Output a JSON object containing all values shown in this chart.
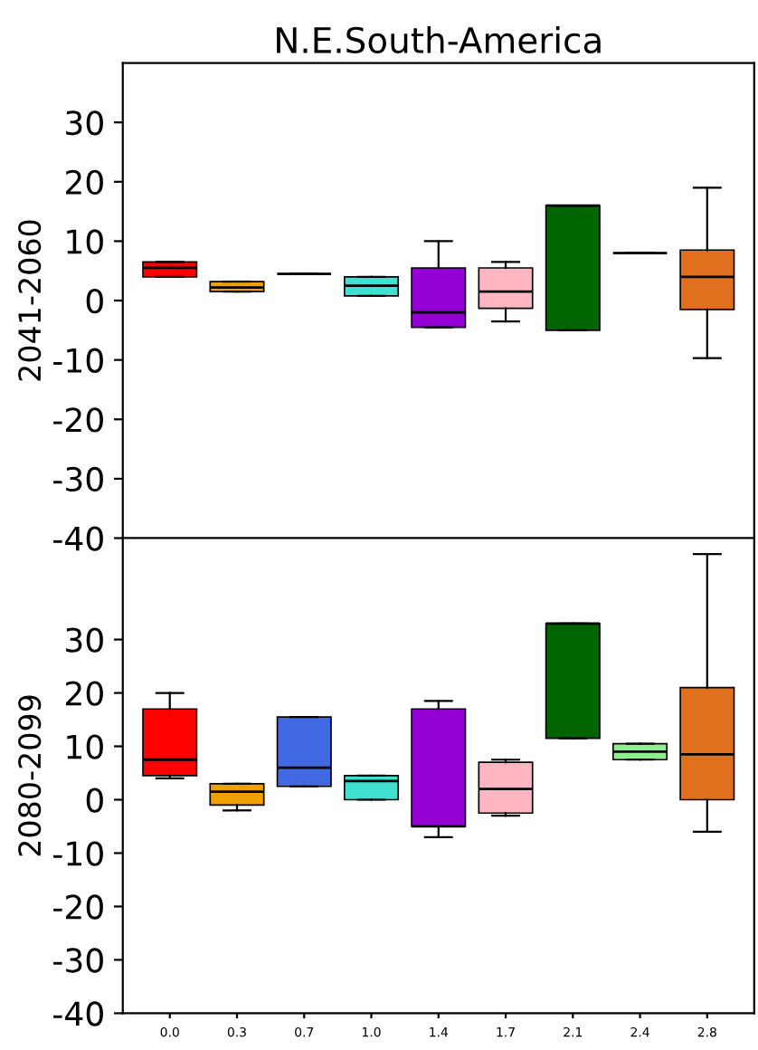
{
  "chart_data": [
    {
      "type": "box",
      "title": "N.E.South-America",
      "ylabel": "2041-2060",
      "categories": [
        "0.0",
        "0.3",
        "0.7",
        "1.0",
        "1.4",
        "1.7",
        "2.1",
        "2.4",
        "2.8"
      ],
      "colors": [
        "#ff0000",
        "#f0a000",
        "#000000",
        "#40e0d0",
        "#9400d3",
        "#ffb6c1",
        "#006400",
        "#000000",
        "#e0701e"
      ],
      "ylim": [
        -40,
        40
      ],
      "yticks": [
        -40,
        -30,
        -20,
        -10,
        0,
        10,
        20,
        30
      ],
      "tick_labels": "y",
      "boxes": [
        {
          "low": 4,
          "q1": 4,
          "median": 5.5,
          "q3": 6.5,
          "high": 6.5
        },
        {
          "low": 1.5,
          "q1": 1.5,
          "median": 2.2,
          "q3": 3.2,
          "high": 3.2
        },
        {
          "low": 4.5,
          "q1": 4.5,
          "median": 4.5,
          "q3": 4.5,
          "high": 4.5
        },
        {
          "low": 0.8,
          "q1": 0.8,
          "median": 2.5,
          "q3": 4,
          "high": 4
        },
        {
          "low": -4.5,
          "q1": -4.5,
          "median": -2,
          "q3": 5.5,
          "high": 10
        },
        {
          "low": -3.5,
          "q1": -1.3,
          "median": 1.5,
          "q3": 5.5,
          "high": 6.5
        },
        {
          "low": -5,
          "q1": -5,
          "median": 16,
          "q3": 16,
          "high": 16
        },
        {
          "low": 8,
          "q1": 8,
          "median": 8,
          "q3": 8,
          "high": 8
        },
        {
          "low": -9.7,
          "q1": -1.5,
          "median": 4,
          "q3": 8.5,
          "high": 19
        }
      ]
    },
    {
      "type": "box",
      "ylabel": "2080-2099",
      "categories": [
        "0.0",
        "0.3",
        "0.7",
        "1.0",
        "1.4",
        "1.7",
        "2.1",
        "2.4",
        "2.8"
      ],
      "colors": [
        "#ff0000",
        "#f0a000",
        "#4169e1",
        "#40e0d0",
        "#9400d3",
        "#ffb6c1",
        "#006400",
        "#90ee90",
        "#e0701e"
      ],
      "ylim": [
        -40,
        49
      ],
      "yticks": [
        -40,
        -30,
        -20,
        -10,
        0,
        10,
        20,
        30
      ],
      "boxes": [
        {
          "low": 4,
          "q1": 4.5,
          "median": 7.5,
          "q3": 17,
          "high": 20
        },
        {
          "low": -2,
          "q1": -1,
          "median": 1.5,
          "q3": 3,
          "high": 3
        },
        {
          "low": 2.5,
          "q1": 2.5,
          "median": 6,
          "q3": 15.5,
          "high": 15.5
        },
        {
          "low": 0,
          "q1": 0,
          "median": 3.5,
          "q3": 4.5,
          "high": 4.5
        },
        {
          "low": -7,
          "q1": -5,
          "median": -5,
          "q3": 17,
          "high": 18.5
        },
        {
          "low": -3,
          "q1": -2.5,
          "median": 2,
          "q3": 7,
          "high": 7.5
        },
        {
          "low": 11.5,
          "q1": 11.5,
          "median": 33,
          "q3": 33,
          "high": 33
        },
        {
          "low": 7.5,
          "q1": 7.5,
          "median": 9,
          "q3": 10.5,
          "high": 10.5
        },
        {
          "low": -6,
          "q1": 0,
          "median": 8.5,
          "q3": 21,
          "high": 46
        }
      ]
    }
  ]
}
